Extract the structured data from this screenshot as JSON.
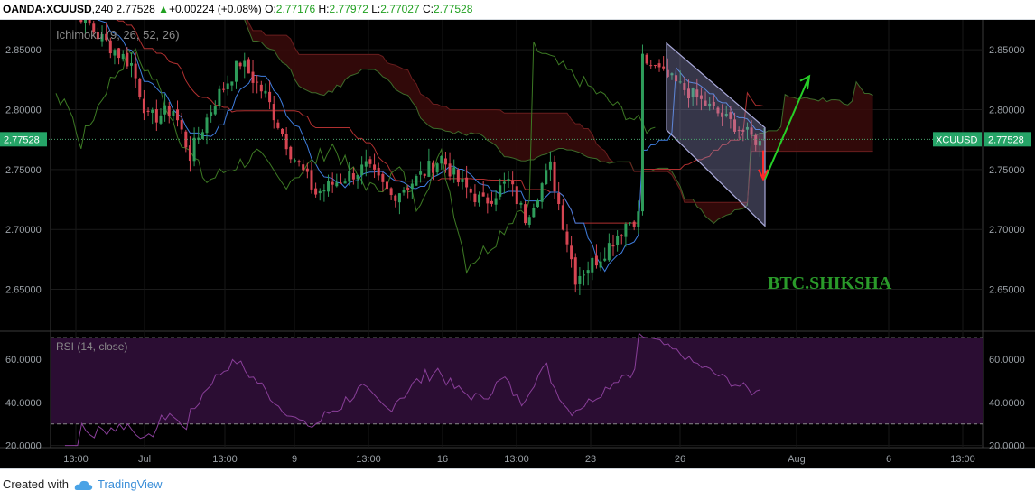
{
  "header": {
    "symbol": "OANDA:XCUUSD",
    "interval": "240",
    "last": "2.77528",
    "change": "+0.00224 (+0.08%)",
    "open_label": "O:",
    "open": "2.77176",
    "high_label": "H:",
    "high": "2.77972",
    "low_label": "L:",
    "low": "2.77027",
    "close_label": "C:",
    "close": "2.77528"
  },
  "footer": {
    "created_with": "Created with",
    "brand": "TradingView"
  },
  "colors": {
    "up": "#2e9c5a",
    "down": "#d64552",
    "tenkan": "#3f7ee0",
    "kijun": "#b03030",
    "chikou": "#3d7a24",
    "rsi": "#8a3f9a",
    "last_price_tag": "#25a467",
    "signal_arrow_up": "#27cf27",
    "signal_arrow_down": "#ff2a2a"
  },
  "chart_data": {
    "type": "candlestick",
    "watermark": "BTC.SHIKSHA",
    "price_axis": {
      "range": [
        2.615,
        2.875
      ],
      "ticks": [
        "2.85000",
        "2.80000",
        "2.75000",
        "2.70000",
        "2.65000"
      ]
    },
    "last_price": {
      "value": 2.77528,
      "label": "2.77528",
      "symbol_tag": "XCUUSD"
    },
    "time_axis": {
      "labels": [
        "13:00",
        "Jul",
        "13:00",
        "9",
        "13:00",
        "16",
        "13:00",
        "23",
        "26",
        "Aug",
        "6",
        "13:00"
      ]
    },
    "indicators": {
      "ichimoku": {
        "label": "Ichimoku (9, 26, 52, 26)"
      },
      "rsi": {
        "label": "RSI (14, close)",
        "range": [
          19,
          73
        ],
        "ticks": [
          "60.0000",
          "40.0000",
          "20.0000"
        ],
        "bands": [
          70,
          30
        ]
      }
    },
    "annotations": [
      {
        "type": "descending_channel"
      },
      {
        "type": "arrow",
        "direction": "up",
        "color": "green"
      },
      {
        "type": "arrow",
        "direction": "down",
        "color": "red"
      }
    ]
  }
}
